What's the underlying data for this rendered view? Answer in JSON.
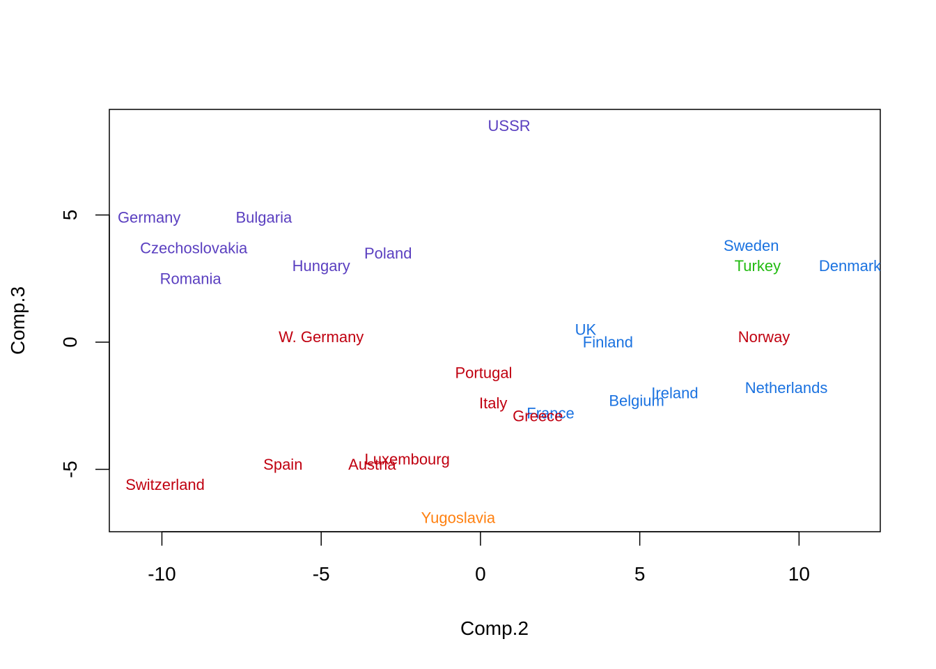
{
  "chart_data": {
    "type": "scatter",
    "title": "",
    "xlabel": "Comp.2",
    "ylabel": "Comp.3",
    "xlim": [
      -11.65,
      12.55
    ],
    "ylim": [
      -7.45,
      9.15
    ],
    "x_ticks": [
      -10,
      -5,
      0,
      5,
      10
    ],
    "x_tick_labels": [
      "-10",
      "-5",
      "0",
      "5",
      "10"
    ],
    "y_ticks": [
      -5,
      0,
      5
    ],
    "y_tick_labels": [
      "-5",
      "0",
      "5"
    ],
    "grid": false,
    "legend": "none",
    "colors": {
      "purple": "#5a3fc0",
      "red": "#c00010",
      "blue": "#1a72e0",
      "green": "#22bb11",
      "orange": "#ff8010"
    },
    "points": [
      {
        "label": "USSR",
        "x": 0.9,
        "y": 8.5,
        "color": "purple"
      },
      {
        "label": "Germany",
        "x": -10.4,
        "y": 4.9,
        "color": "purple"
      },
      {
        "label": "Bulgaria",
        "x": -6.8,
        "y": 4.9,
        "color": "purple"
      },
      {
        "label": "Czechoslovakia",
        "x": -9.0,
        "y": 3.7,
        "color": "purple"
      },
      {
        "label": "Poland",
        "x": -2.9,
        "y": 3.5,
        "color": "purple"
      },
      {
        "label": "Hungary",
        "x": -5.0,
        "y": 3.0,
        "color": "purple"
      },
      {
        "label": "Romania",
        "x": -9.1,
        "y": 2.5,
        "color": "purple"
      },
      {
        "label": "Sweden",
        "x": 8.5,
        "y": 3.8,
        "color": "blue"
      },
      {
        "label": "Turkey",
        "x": 8.7,
        "y": 3.0,
        "color": "green"
      },
      {
        "label": "Denmark",
        "x": 11.6,
        "y": 3.0,
        "color": "blue"
      },
      {
        "label": "UK",
        "x": 3.3,
        "y": 0.5,
        "color": "blue"
      },
      {
        "label": "Finland",
        "x": 4.0,
        "y": 0.0,
        "color": "blue"
      },
      {
        "label": "W. Germany",
        "x": -5.0,
        "y": 0.2,
        "color": "red"
      },
      {
        "label": "Norway",
        "x": 8.9,
        "y": 0.2,
        "color": "red"
      },
      {
        "label": "Portugal",
        "x": 0.1,
        "y": -1.2,
        "color": "red"
      },
      {
        "label": "Ireland",
        "x": 6.1,
        "y": -2.0,
        "color": "blue"
      },
      {
        "label": "Netherlands",
        "x": 9.6,
        "y": -1.8,
        "color": "blue"
      },
      {
        "label": "Belgium",
        "x": 4.9,
        "y": -2.3,
        "color": "blue"
      },
      {
        "label": "Italy",
        "x": 0.4,
        "y": -2.4,
        "color": "red"
      },
      {
        "label": "France",
        "x": 2.2,
        "y": -2.8,
        "color": "blue"
      },
      {
        "label": "Greece",
        "x": 1.8,
        "y": -2.9,
        "color": "red"
      },
      {
        "label": "Luxembourg",
        "x": -2.3,
        "y": -4.6,
        "color": "red"
      },
      {
        "label": "Austria",
        "x": -3.4,
        "y": -4.8,
        "color": "red"
      },
      {
        "label": "Spain",
        "x": -6.2,
        "y": -4.8,
        "color": "red"
      },
      {
        "label": "Switzerland",
        "x": -9.9,
        "y": -5.6,
        "color": "red"
      },
      {
        "label": "Yugoslavia",
        "x": -0.7,
        "y": -6.9,
        "color": "orange"
      }
    ]
  }
}
